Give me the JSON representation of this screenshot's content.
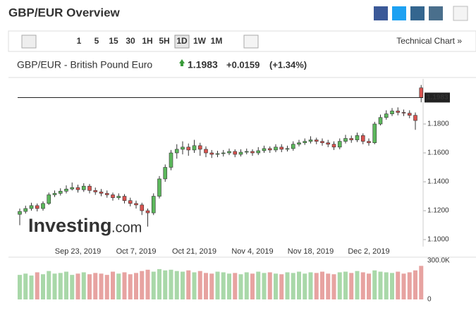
{
  "header": {
    "title": "GBP/EUR Overview"
  },
  "toolbar": {
    "intervals": [
      "1",
      "5",
      "15",
      "30",
      "1H",
      "5H",
      "1D",
      "1W",
      "1M"
    ],
    "active_interval": "1D",
    "link": "Technical Chart »"
  },
  "quote": {
    "name": "GBP/EUR - British Pound Euro",
    "price": "1.1983",
    "change": "+0.0159",
    "change_percent": "(+1.34%)"
  },
  "watermark": {
    "brand": "Investing",
    "suffix": ".com"
  },
  "chart_data": {
    "type": "candlestick",
    "categories": [
      null,
      null,
      null,
      null,
      null,
      null,
      null,
      null,
      null,
      null,
      "Sep 23, 2019",
      null,
      null,
      null,
      null,
      null,
      null,
      null,
      null,
      null,
      "Oct 7, 2019",
      null,
      null,
      null,
      null,
      null,
      null,
      null,
      null,
      null,
      "Oct 21, 2019",
      null,
      null,
      null,
      null,
      null,
      null,
      null,
      null,
      null,
      "Nov 4, 2019",
      null,
      null,
      null,
      null,
      null,
      null,
      null,
      null,
      null,
      "Nov 18, 2019",
      null,
      null,
      null,
      null,
      null,
      null,
      null,
      null,
      null,
      "Dec 2, 2019",
      null,
      null,
      null,
      null,
      null,
      null,
      null,
      null,
      null
    ],
    "open": [
      1.1175,
      1.1195,
      1.1215,
      1.1235,
      1.1215,
      1.125,
      1.131,
      1.132,
      1.1335,
      1.135,
      1.136,
      1.1345,
      1.137,
      1.134,
      1.133,
      1.132,
      1.131,
      1.129,
      1.13,
      1.127,
      1.125,
      1.124,
      1.12,
      1.1185,
      1.13,
      1.142,
      1.15,
      1.16,
      1.1625,
      1.164,
      1.162,
      1.165,
      1.1625,
      1.16,
      1.159,
      1.1595,
      1.16,
      1.161,
      1.159,
      1.1605,
      1.161,
      1.16,
      1.1615,
      1.163,
      1.162,
      1.164,
      1.1625,
      1.163,
      1.166,
      1.167,
      1.168,
      1.169,
      1.168,
      1.167,
      1.166,
      1.164,
      1.168,
      1.17,
      1.169,
      1.172,
      1.168,
      1.167,
      1.18,
      1.1845,
      1.187,
      1.189,
      1.188,
      1.1875,
      1.186,
      1.205
    ],
    "high": [
      1.1215,
      1.1235,
      1.1255,
      1.125,
      1.1265,
      1.1325,
      1.134,
      1.1355,
      1.1375,
      1.1395,
      1.138,
      1.139,
      1.1385,
      1.136,
      1.135,
      1.134,
      1.1325,
      1.132,
      1.1315,
      1.129,
      1.127,
      1.1255,
      1.1215,
      1.132,
      1.144,
      1.152,
      1.162,
      1.166,
      1.168,
      1.1665,
      1.169,
      1.167,
      1.1645,
      1.162,
      1.1615,
      1.162,
      1.163,
      1.1625,
      1.1625,
      1.163,
      1.1625,
      1.164,
      1.165,
      1.1645,
      1.166,
      1.166,
      1.165,
      1.168,
      1.169,
      1.17,
      1.1715,
      1.1705,
      1.17,
      1.169,
      1.168,
      1.17,
      1.1725,
      1.172,
      1.174,
      1.1735,
      1.17,
      1.1815,
      1.1865,
      1.1895,
      1.191,
      1.1915,
      1.19,
      1.1895,
      1.188,
      1.207
    ],
    "low": [
      1.11,
      1.118,
      1.12,
      1.1195,
      1.12,
      1.124,
      1.1295,
      1.1305,
      1.132,
      1.134,
      1.1325,
      1.133,
      1.132,
      1.131,
      1.13,
      1.129,
      1.127,
      1.1275,
      1.125,
      1.123,
      1.1215,
      1.117,
      1.109,
      1.117,
      1.1285,
      1.14,
      1.148,
      1.156,
      1.159,
      1.158,
      1.16,
      1.158,
      1.157,
      1.1565,
      1.157,
      1.1575,
      1.1585,
      1.157,
      1.1575,
      1.159,
      1.158,
      1.1585,
      1.16,
      1.16,
      1.1605,
      1.1605,
      1.161,
      1.1615,
      1.1645,
      1.1655,
      1.1665,
      1.166,
      1.165,
      1.164,
      1.162,
      1.1625,
      1.1665,
      1.167,
      1.1675,
      1.166,
      1.165,
      1.166,
      1.179,
      1.183,
      1.1855,
      1.186,
      1.1855,
      1.184,
      1.176,
      1.195
    ],
    "close": [
      1.1195,
      1.1215,
      1.1235,
      1.1215,
      1.125,
      1.131,
      1.132,
      1.1335,
      1.135,
      1.136,
      1.1345,
      1.137,
      1.134,
      1.133,
      1.132,
      1.131,
      1.129,
      1.13,
      1.127,
      1.125,
      1.124,
      1.12,
      1.1185,
      1.13,
      1.142,
      1.15,
      1.16,
      1.1625,
      1.164,
      1.162,
      1.165,
      1.1625,
      1.16,
      1.159,
      1.1595,
      1.16,
      1.161,
      1.159,
      1.1605,
      1.161,
      1.16,
      1.1615,
      1.163,
      1.162,
      1.164,
      1.1625,
      1.163,
      1.166,
      1.167,
      1.168,
      1.169,
      1.168,
      1.167,
      1.166,
      1.164,
      1.168,
      1.17,
      1.169,
      1.172,
      1.168,
      1.167,
      1.18,
      1.1845,
      1.187,
      1.189,
      1.188,
      1.1875,
      1.186,
      1.1824,
      1.1983
    ],
    "up_color": "#5cb85c",
    "down_color": "#d9534f",
    "ylim": [
      1.0976,
      1.2112
    ],
    "yticks": [
      {
        "value": 1.1,
        "label": "1.1000"
      },
      {
        "value": 1.12,
        "label": "1.1200"
      },
      {
        "value": 1.14,
        "label": "1.1400"
      },
      {
        "value": 1.16,
        "label": "1.1600"
      },
      {
        "value": 1.18,
        "label": "1.1800"
      }
    ],
    "current_price": 1.1983,
    "volume": {
      "values": [
        190000,
        200000,
        185000,
        210000,
        195000,
        220000,
        200000,
        205000,
        215000,
        190000,
        200000,
        210000,
        195000,
        205000,
        200000,
        190000,
        215000,
        200000,
        210000,
        195000,
        205000,
        220000,
        230000,
        215000,
        235000,
        225000,
        230000,
        220000,
        215000,
        225000,
        210000,
        220000,
        205000,
        200000,
        215000,
        210000,
        200000,
        205000,
        195000,
        210000,
        200000,
        215000,
        205000,
        210000,
        200000,
        195000,
        210000,
        205000,
        215000,
        200000,
        210000,
        205000,
        215000,
        200000,
        195000,
        210000,
        215000,
        205000,
        220000,
        210000,
        200000,
        225000,
        215000,
        210000,
        205000,
        215000,
        200000,
        210000,
        225000,
        260000
      ],
      "ylim": [
        0,
        300000
      ],
      "yticks": [
        {
          "value": 300000,
          "label": "300.0K"
        },
        0
      ],
      "up_color": "#a9d8a9",
      "down_color": "#e7a3a1"
    }
  }
}
